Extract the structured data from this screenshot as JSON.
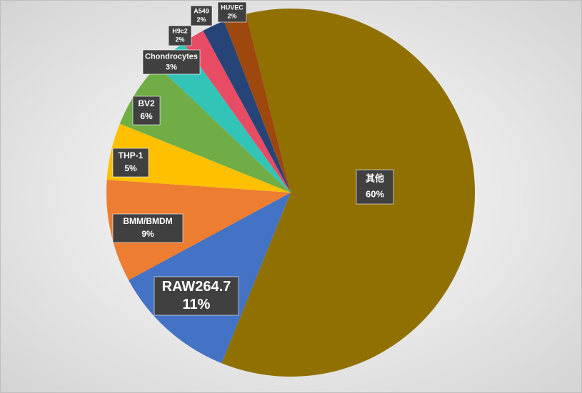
{
  "chart_data": {
    "type": "pie",
    "categories": [
      "其他",
      "RAW264.7",
      "BMM/BMDM",
      "THP-1",
      "BV2",
      "Chondrocytes",
      "H9c2",
      "A549",
      "HUVEC"
    ],
    "values": [
      60,
      11,
      9,
      5,
      6,
      3,
      2,
      2,
      2
    ],
    "value_labels": [
      "60%",
      "11%",
      "9%",
      "5%",
      "6%",
      "3%",
      "2%",
      "2%",
      "2%"
    ],
    "colors": [
      "#8f7000",
      "#4472c4",
      "#ed7d31",
      "#ffc000",
      "#70ad47",
      "#33c4b8",
      "#e84c65",
      "#264478",
      "#9e480e"
    ]
  }
}
